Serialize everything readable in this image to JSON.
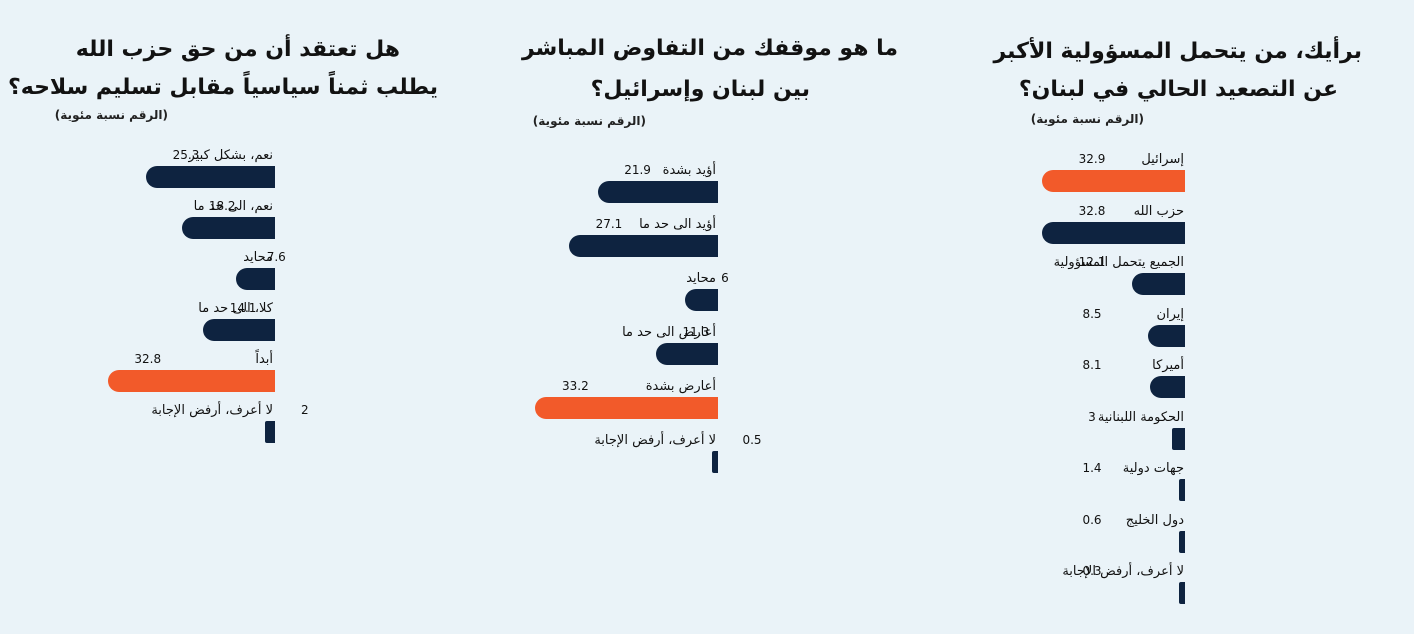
{
  "colors": {
    "normal": "#0e2340",
    "highlight": "#f25a2a"
  },
  "panels": [
    {
      "title_lines": [
        "برأيك، من يتحمل المسؤولية الأكبر",
        "عن التصعيد الحالي في لبنان؟"
      ],
      "unit": "(الرقم نسبة مئوية)"
    },
    {
      "title_lines": [
        "ما هو موقفك من التفاوض المباشر",
        "بين لبنان وإسرائيل؟"
      ],
      "unit": "(الرقم نسبة مئوية)"
    },
    {
      "title_lines": [
        "هل تعتقد أن من حق حزب الله",
        "يطلب ثمناً سياسياً مقابل تسليم سلاحه؟"
      ],
      "unit": "(الرقم نسبة مئوية)"
    }
  ],
  "chart_data": [
    {
      "type": "bar",
      "orientation": "horizontal",
      "direction": "right-to-left",
      "title": "برأيك، من يتحمل المسؤولية الأكبر عن التصعيد الحالي في لبنان؟",
      "unit": "(الرقم نسبة مئوية)",
      "categories": [
        "إسرائيل",
        "حزب الله",
        "الجميع يتحمل المسؤولية",
        "إيران",
        "أميركا",
        "الحكومة اللبنانية",
        "جهات دولية",
        "دول الخليج",
        "لا أعرف، أرفض الإجابة"
      ],
      "values": [
        32.9,
        32.8,
        12.1,
        8.5,
        8.1,
        3,
        1.4,
        0.6,
        0.3
      ],
      "value_labels": [
        "32.9",
        "32.8",
        "12.1",
        "8.5",
        "8.1",
        "3",
        "1.4",
        "0.6",
        "0.3"
      ],
      "highlight": [
        0
      ]
    },
    {
      "type": "bar",
      "orientation": "horizontal",
      "direction": "right-to-left",
      "title": "ما هو موقفك من التفاوض المباشر بين لبنان وإسرائيل؟",
      "unit": "(الرقم نسبة مئوية)",
      "categories": [
        "أؤيد بشدة",
        "أؤيد الى حد ما",
        "محايد",
        "أعارض الى حد ما",
        "أعارض بشدة",
        "لا أعرف، أرفض الإجابة"
      ],
      "values": [
        21.9,
        27.1,
        6,
        11.3,
        33.2,
        0.5
      ],
      "value_labels": [
        "21.9",
        "27.1",
        "6",
        "11.3",
        "33.2",
        "0.5"
      ],
      "highlight": [
        4
      ]
    },
    {
      "type": "bar",
      "orientation": "horizontal",
      "direction": "right-to-left",
      "title": "هل تعتقد أن من حق حزب الله يطلب ثمناً سياسياً مقابل تسليم سلاحه؟",
      "unit": "(الرقم نسبة مئوية)",
      "categories": [
        "نعم، بشكل كبير",
        "نعم، الى حد ما",
        "محايد",
        "كلا، الى حد ما",
        "أبداً",
        "لا أعرف، أرفض الإجابة"
      ],
      "values": [
        25.3,
        18.2,
        7.6,
        14.1,
        32.8,
        2
      ],
      "value_labels": [
        "25.3",
        "18.2",
        "7.6",
        "14.1",
        "32.8",
        "2"
      ],
      "highlight": [
        4
      ]
    }
  ]
}
